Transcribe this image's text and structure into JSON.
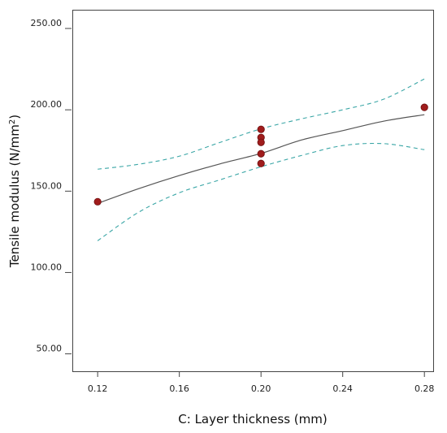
{
  "chart_data": {
    "type": "scatter",
    "title": "",
    "xlabel": "C: Layer thickness (mm)",
    "ylabel_main": "Tensile modulus (N/mm",
    "ylabel_sup": "2",
    "ylabel_close": ")",
    "xlim": [
      0.108,
      0.2843
    ],
    "ylim": [
      39.3,
      261
    ],
    "xticks": [
      0.12,
      0.16,
      0.2,
      0.24,
      0.28
    ],
    "xtick_labels": [
      "0.12",
      "0.16",
      "0.20",
      "0.24",
      "0.28"
    ],
    "yticks": [
      50,
      100,
      150,
      200,
      250
    ],
    "ytick_labels": [
      "50.00",
      "100.00",
      "150.00",
      "200.00",
      "250.00"
    ],
    "grid": false,
    "series": [
      {
        "kind": "points",
        "color": "#a01c1c",
        "points": [
          {
            "x": 0.12,
            "y": 143.5
          },
          {
            "x": 0.2,
            "y": 188.0
          },
          {
            "x": 0.2,
            "y": 183.0
          },
          {
            "x": 0.2,
            "y": 180.0
          },
          {
            "x": 0.2,
            "y": 173.0
          },
          {
            "x": 0.2,
            "y": 167.0
          },
          {
            "x": 0.28,
            "y": 201.5
          }
        ]
      },
      {
        "kind": "fit-line",
        "color": "#555555",
        "points": [
          {
            "x": 0.12,
            "y": 142.5
          },
          {
            "x": 0.14,
            "y": 151.5
          },
          {
            "x": 0.16,
            "y": 159.6
          },
          {
            "x": 0.18,
            "y": 166.8
          },
          {
            "x": 0.2,
            "y": 173.2
          },
          {
            "x": 0.22,
            "y": 181.5
          },
          {
            "x": 0.24,
            "y": 187.2
          },
          {
            "x": 0.26,
            "y": 193.0
          },
          {
            "x": 0.28,
            "y": 197.0
          }
        ]
      },
      {
        "kind": "ci-upper",
        "color": "#3aa6a6",
        "points": [
          {
            "x": 0.12,
            "y": 163.5
          },
          {
            "x": 0.14,
            "y": 166.5
          },
          {
            "x": 0.16,
            "y": 171.5
          },
          {
            "x": 0.18,
            "y": 180.0
          },
          {
            "x": 0.2,
            "y": 188.3
          },
          {
            "x": 0.22,
            "y": 194.5
          },
          {
            "x": 0.24,
            "y": 200.0
          },
          {
            "x": 0.26,
            "y": 206.5
          },
          {
            "x": 0.28,
            "y": 219.0
          }
        ]
      },
      {
        "kind": "ci-lower",
        "color": "#3aa6a6",
        "points": [
          {
            "x": 0.12,
            "y": 119.5
          },
          {
            "x": 0.14,
            "y": 137.0
          },
          {
            "x": 0.16,
            "y": 149.0
          },
          {
            "x": 0.18,
            "y": 157.0
          },
          {
            "x": 0.2,
            "y": 165.0
          },
          {
            "x": 0.22,
            "y": 172.0
          },
          {
            "x": 0.24,
            "y": 178.0
          },
          {
            "x": 0.26,
            "y": 179.2
          },
          {
            "x": 0.28,
            "y": 175.5
          }
        ]
      }
    ]
  }
}
